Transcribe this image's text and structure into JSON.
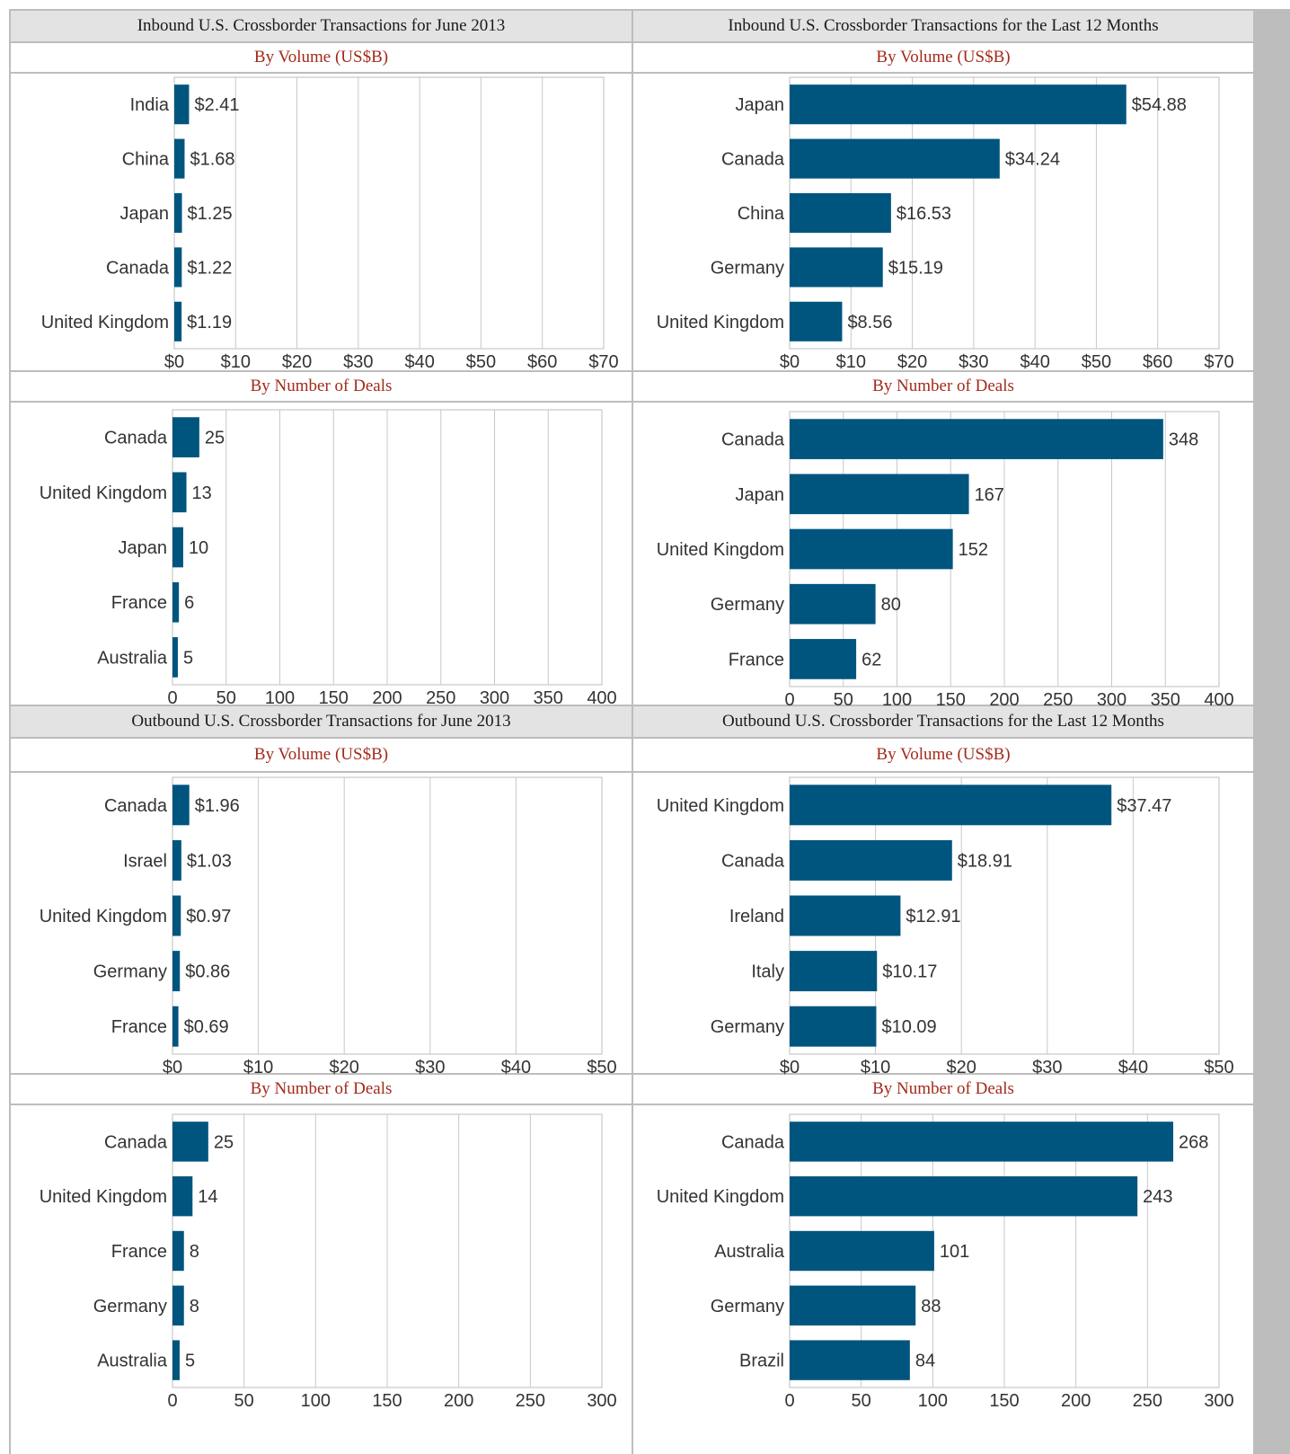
{
  "colors": {
    "bar": "#00557f",
    "grid": "#c8c8c8",
    "frame": "#bdbdbd",
    "header_bg": "#e3e3e3",
    "subtitle": "#a32a1a"
  },
  "sections": [
    {
      "title": "Inbound U.S. Crossborder Transactions for June 2013",
      "panels": [
        {
          "subtitle": "By Volume (US$B)",
          "chart_data": {
            "type": "bar",
            "orientation": "horizontal",
            "categories": [
              "India",
              "China",
              "Japan",
              "Canada",
              "United Kingdom"
            ],
            "values": [
              2.41,
              1.68,
              1.25,
              1.22,
              1.19
            ],
            "value_labels": [
              "$2.41",
              "$1.68",
              "$1.25",
              "$1.22",
              "$1.19"
            ],
            "xlim": [
              0,
              70
            ],
            "x_ticks": [
              0,
              10,
              20,
              30,
              40,
              50,
              60,
              70
            ],
            "x_tick_labels": [
              "$0",
              "$10",
              "$20",
              "$30",
              "$40",
              "$50",
              "$60",
              "$70"
            ],
            "grid": true
          }
        },
        {
          "subtitle": "By Number of Deals",
          "chart_data": {
            "type": "bar",
            "orientation": "horizontal",
            "categories": [
              "Canada",
              "United Kingdom",
              "Japan",
              "France",
              "Australia"
            ],
            "values": [
              25,
              13,
              10,
              6,
              5
            ],
            "value_labels": [
              "25",
              "13",
              "10",
              "6",
              "5"
            ],
            "xlim": [
              0,
              400
            ],
            "x_ticks": [
              0,
              50,
              100,
              150,
              200,
              250,
              300,
              350,
              400
            ],
            "x_tick_labels": [
              "0",
              "50",
              "100",
              "150",
              "200",
              "250",
              "300",
              "350",
              "400"
            ],
            "grid": true
          }
        }
      ]
    },
    {
      "title": "Inbound U.S. Crossborder Transactions for the Last 12 Months",
      "panels": [
        {
          "subtitle": "By Volume (US$B)",
          "chart_data": {
            "type": "bar",
            "orientation": "horizontal",
            "categories": [
              "Japan",
              "Canada",
              "China",
              "Germany",
              "United Kingdom"
            ],
            "values": [
              54.88,
              34.24,
              16.53,
              15.19,
              8.56
            ],
            "value_labels": [
              "$54.88",
              "$34.24",
              "$16.53",
              "$15.19",
              "$8.56"
            ],
            "xlim": [
              0,
              70
            ],
            "x_ticks": [
              0,
              10,
              20,
              30,
              40,
              50,
              60,
              70
            ],
            "x_tick_labels": [
              "$0",
              "$10",
              "$20",
              "$30",
              "$40",
              "$50",
              "$60",
              "$70"
            ],
            "grid": true
          }
        },
        {
          "subtitle": "By Number of Deals",
          "chart_data": {
            "type": "bar",
            "orientation": "horizontal",
            "categories": [
              "Canada",
              "Japan",
              "United Kingdom",
              "Germany",
              "France"
            ],
            "values": [
              348,
              167,
              152,
              80,
              62
            ],
            "value_labels": [
              "348",
              "167",
              "152",
              "80",
              "62"
            ],
            "xlim": [
              0,
              400
            ],
            "x_ticks": [
              0,
              50,
              100,
              150,
              200,
              250,
              300,
              350,
              400
            ],
            "x_tick_labels": [
              "0",
              "50",
              "100",
              "150",
              "200",
              "250",
              "300",
              "350",
              "400"
            ],
            "grid": true
          }
        }
      ]
    },
    {
      "title": "Outbound U.S. Crossborder Transactions for June 2013",
      "panels": [
        {
          "subtitle": "By Volume (US$B)",
          "chart_data": {
            "type": "bar",
            "orientation": "horizontal",
            "categories": [
              "Canada",
              "Israel",
              "United Kingdom",
              "Germany",
              "France"
            ],
            "values": [
              1.96,
              1.03,
              0.97,
              0.86,
              0.69
            ],
            "value_labels": [
              "$1.96",
              "$1.03",
              "$0.97",
              "$0.86",
              "$0.69"
            ],
            "xlim": [
              0,
              50
            ],
            "x_ticks": [
              0,
              10,
              20,
              30,
              40,
              50
            ],
            "x_tick_labels": [
              "$0",
              "$10",
              "$20",
              "$30",
              "$40",
              "$50"
            ],
            "grid": true
          }
        },
        {
          "subtitle": "By Number of Deals",
          "chart_data": {
            "type": "bar",
            "orientation": "horizontal",
            "categories": [
              "Canada",
              "United Kingdom",
              "France",
              "Germany",
              "Australia"
            ],
            "values": [
              25,
              14,
              8,
              8,
              5
            ],
            "value_labels": [
              "25",
              "14",
              "8",
              "8",
              "5"
            ],
            "xlim": [
              0,
              300
            ],
            "x_ticks": [
              0,
              50,
              100,
              150,
              200,
              250,
              300
            ],
            "x_tick_labels": [
              "0",
              "50",
              "100",
              "150",
              "200",
              "250",
              "300"
            ],
            "grid": true
          }
        }
      ]
    },
    {
      "title": "Outbound U.S. Crossborder Transactions for the Last 12 Months",
      "panels": [
        {
          "subtitle": "By Volume (US$B)",
          "chart_data": {
            "type": "bar",
            "orientation": "horizontal",
            "categories": [
              "United Kingdom",
              "Canada",
              "Ireland",
              "Italy",
              "Germany"
            ],
            "values": [
              37.47,
              18.91,
              12.91,
              10.17,
              10.09
            ],
            "value_labels": [
              "$37.47",
              "$18.91",
              "$12.91",
              "$10.17",
              "$10.09"
            ],
            "xlim": [
              0,
              50
            ],
            "x_ticks": [
              0,
              10,
              20,
              30,
              40,
              50
            ],
            "x_tick_labels": [
              "$0",
              "$10",
              "$20",
              "$30",
              "$40",
              "$50"
            ],
            "grid": true
          }
        },
        {
          "subtitle": "By Number of Deals",
          "chart_data": {
            "type": "bar",
            "orientation": "horizontal",
            "categories": [
              "Canada",
              "United Kingdom",
              "Australia",
              "Germany",
              "Brazil"
            ],
            "values": [
              268,
              243,
              101,
              88,
              84
            ],
            "value_labels": [
              "268",
              "243",
              "101",
              "88",
              "84"
            ],
            "xlim": [
              0,
              300
            ],
            "x_ticks": [
              0,
              50,
              100,
              150,
              200,
              250,
              300
            ],
            "x_tick_labels": [
              "0",
              "50",
              "100",
              "150",
              "200",
              "250",
              "300"
            ],
            "grid": true
          }
        }
      ]
    }
  ]
}
